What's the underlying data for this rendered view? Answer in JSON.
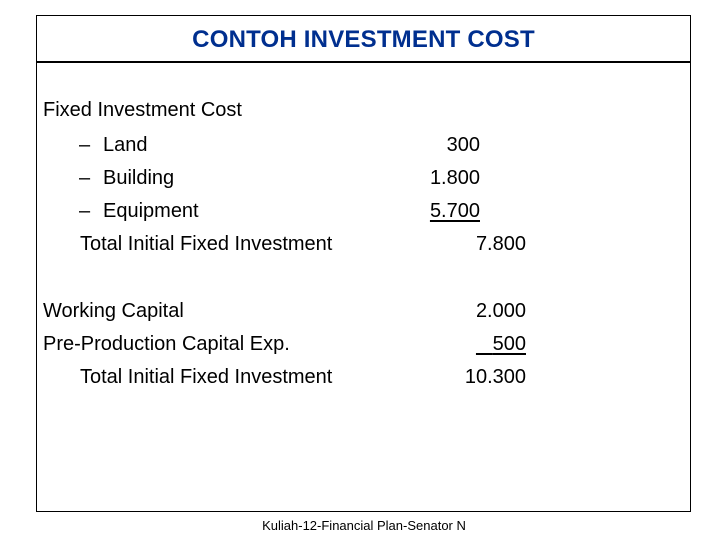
{
  "slide": {
    "title": "CONTOH INVESTMENT COST",
    "title_color": "#002f8f"
  },
  "content": {
    "fixed_header": "Fixed Investment Cost",
    "dash": "–",
    "fixed_items": [
      {
        "label": "Land",
        "amount": "300"
      },
      {
        "label": "Building",
        "amount": "1.800"
      },
      {
        "label": "Equipment",
        "amount": "5.700"
      }
    ],
    "total_fixed": {
      "label": "Total Initial Fixed Investment",
      "amount": "7.800"
    },
    "working_capital": {
      "label": "Working Capital",
      "amount": "2.000"
    },
    "preproduction": {
      "label": "Pre-Production Capital Exp.",
      "amount": "500"
    },
    "total_initial": {
      "label": "Total Initial Fixed Investment",
      "amount": "10.300"
    }
  },
  "footer": {
    "text": "Kuliah-12-Financial Plan-Senator N"
  }
}
